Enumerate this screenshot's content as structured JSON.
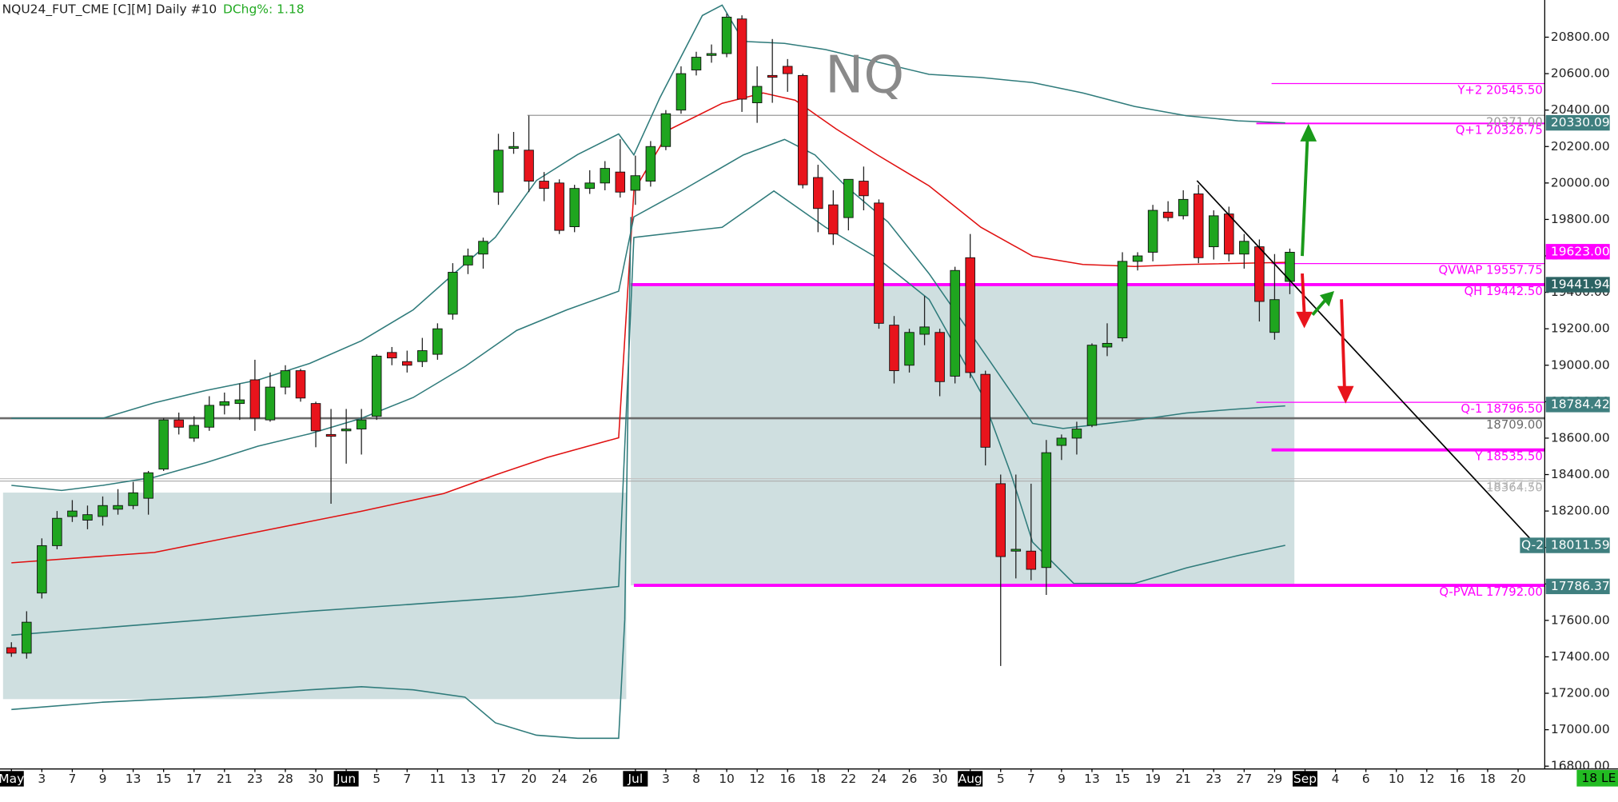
{
  "chart_data": {
    "type": "candlestick",
    "title": "NQU24_FUT_CME [C][M] Daily #10",
    "subtitle": "DChg%: 1.18",
    "watermark": "NQ",
    "corner_label": "18 LE",
    "up_color": "#1fa51f",
    "down_color": "#e8141c",
    "xlim": [
      -0.75,
      100.75
    ],
    "ylim": [
      16800,
      21000
    ],
    "open": [
      17450,
      17420,
      17750,
      18010,
      18170,
      18150,
      18170,
      18210,
      18230,
      18270,
      18430,
      18700,
      18600,
      18660,
      18780,
      18790,
      18920,
      18700,
      18880,
      18970,
      18790,
      18620,
      18640,
      18650,
      18720,
      19070,
      19020,
      19020,
      19060,
      19280,
      19550,
      19610,
      19950,
      20190,
      20180,
      20010,
      20000,
      19760,
      19970,
      20000,
      20060,
      19960,
      20010,
      20200,
      20400,
      20620,
      20700,
      20710,
      20900,
      20440,
      20590,
      20640,
      20590,
      20030,
      19880,
      19810,
      20010,
      19890,
      19220,
      19000,
      19170,
      19180,
      18940,
      19590,
      18950,
      18350,
      17980,
      17980,
      17890,
      18560,
      18600,
      18670,
      19100,
      19150,
      19570,
      19620,
      19840,
      19820,
      19940,
      19650,
      19830,
      19610,
      19650,
      19180,
      19460
    ],
    "high": [
      17480,
      17650,
      18050,
      18200,
      18260,
      18230,
      18280,
      18320,
      18360,
      18420,
      18710,
      18740,
      18720,
      18830,
      18850,
      18900,
      19030,
      18960,
      19000,
      18980,
      18800,
      18760,
      18760,
      18760,
      19060,
      19100,
      19080,
      19150,
      19230,
      19560,
      19640,
      19700,
      20270,
      20280,
      20370,
      20060,
      20020,
      19990,
      20070,
      20120,
      20240,
      20150,
      20230,
      20400,
      20640,
      20720,
      20760,
      20930,
      20920,
      20640,
      20790,
      20680,
      20600,
      20100,
      19960,
      20020,
      20090,
      19910,
      19270,
      19200,
      19380,
      19200,
      19540,
      19720,
      18970,
      18400,
      18400,
      18350,
      18590,
      18620,
      18690,
      19120,
      19230,
      19620,
      19620,
      19880,
      19900,
      19960,
      19990,
      19850,
      19870,
      19720,
      19690,
      19610,
      19640
    ],
    "low": [
      17400,
      17390,
      17720,
      17990,
      18140,
      18100,
      18120,
      18180,
      18210,
      18180,
      18420,
      18620,
      18580,
      18640,
      18730,
      18700,
      18640,
      18690,
      18840,
      18800,
      18550,
      18240,
      18460,
      18510,
      18700,
      19000,
      18960,
      18990,
      19030,
      19250,
      19500,
      19530,
      19880,
      20160,
      19950,
      19900,
      19720,
      19730,
      19940,
      19960,
      19920,
      19880,
      19980,
      20180,
      20380,
      20590,
      20660,
      20690,
      20390,
      20330,
      20440,
      20500,
      19970,
      19730,
      19660,
      19740,
      19850,
      19200,
      18900,
      18960,
      19110,
      18830,
      18900,
      18930,
      18450,
      17350,
      17830,
      17820,
      17740,
      18480,
      18510,
      18660,
      19050,
      19130,
      19520,
      19570,
      19790,
      19800,
      19560,
      19580,
      19570,
      19530,
      19240,
      19140,
      19390
    ],
    "close": [
      17420,
      17590,
      18010,
      18160,
      18200,
      18180,
      18230,
      18230,
      18300,
      18410,
      18700,
      18660,
      18670,
      18780,
      18800,
      18810,
      18710,
      18880,
      18970,
      18820,
      18640,
      18610,
      18650,
      18700,
      19050,
      19040,
      19000,
      19080,
      19200,
      19510,
      19600,
      19680,
      20180,
      20200,
      20010,
      19970,
      19740,
      19970,
      20000,
      20080,
      19950,
      20040,
      20200,
      20380,
      20600,
      20690,
      20710,
      20910,
      20460,
      20530,
      20580,
      20600,
      19990,
      19860,
      19720,
      20020,
      19930,
      19230,
      18970,
      19180,
      19210,
      18910,
      19520,
      18960,
      18550,
      17950,
      17990,
      17880,
      18520,
      18600,
      18650,
      19110,
      19120,
      19570,
      19600,
      19850,
      19810,
      19910,
      19590,
      19820,
      19610,
      19680,
      19350,
      19360,
      19620
    ],
    "xticks": [
      {
        "value": 0,
        "label": "May"
      },
      {
        "value": 2,
        "label": "3"
      },
      {
        "value": 4,
        "label": "7"
      },
      {
        "value": 6,
        "label": "9"
      },
      {
        "value": 8,
        "label": "13"
      },
      {
        "value": 10,
        "label": "15"
      },
      {
        "value": 12,
        "label": "17"
      },
      {
        "value": 14,
        "label": "21"
      },
      {
        "value": 16,
        "label": "23"
      },
      {
        "value": 18,
        "label": "28"
      },
      {
        "value": 20,
        "label": "30"
      },
      {
        "value": 22,
        "label": "Jun"
      },
      {
        "value": 24,
        "label": "5"
      },
      {
        "value": 26,
        "label": "7"
      },
      {
        "value": 28,
        "label": "11"
      },
      {
        "value": 30,
        "label": "13"
      },
      {
        "value": 32,
        "label": "17"
      },
      {
        "value": 34,
        "label": "20"
      },
      {
        "value": 36,
        "label": "24"
      },
      {
        "value": 38,
        "label": "26"
      },
      {
        "value": 41,
        "label": "Jul"
      },
      {
        "value": 43,
        "label": "3"
      },
      {
        "value": 45,
        "label": "8"
      },
      {
        "value": 47,
        "label": "10"
      },
      {
        "value": 49,
        "label": "12"
      },
      {
        "value": 51,
        "label": "16"
      },
      {
        "value": 53,
        "label": "18"
      },
      {
        "value": 55,
        "label": "22"
      },
      {
        "value": 57,
        "label": "24"
      },
      {
        "value": 59,
        "label": "26"
      },
      {
        "value": 61,
        "label": "30"
      },
      {
        "value": 63,
        "label": "Aug"
      },
      {
        "value": 65,
        "label": "5"
      },
      {
        "value": 67,
        "label": "7"
      },
      {
        "value": 69,
        "label": "9"
      },
      {
        "value": 71,
        "label": "13"
      },
      {
        "value": 73,
        "label": "15"
      },
      {
        "value": 75,
        "label": "19"
      },
      {
        "value": 77,
        "label": "21"
      },
      {
        "value": 79,
        "label": "23"
      },
      {
        "value": 81,
        "label": "27"
      },
      {
        "value": 83,
        "label": "29"
      },
      {
        "value": 85,
        "label": "Sep"
      },
      {
        "value": 87,
        "label": "4"
      },
      {
        "value": 89,
        "label": "6"
      },
      {
        "value": 91,
        "label": "10"
      },
      {
        "value": 93,
        "label": "12"
      },
      {
        "value": 95,
        "label": "16"
      },
      {
        "value": 97,
        "label": "18"
      },
      {
        "value": 99,
        "label": "20"
      }
    ],
    "yticks": [
      {
        "value": 16800,
        "label": "16800.00"
      },
      {
        "value": 17000,
        "label": "17000.00"
      },
      {
        "value": 17200,
        "label": "17200.00"
      },
      {
        "value": 17400,
        "label": "17400.00"
      },
      {
        "value": 17600,
        "label": "17600.00"
      },
      {
        "value": 17800,
        "label": "17800.00"
      },
      {
        "value": 18000,
        "label": "18000.00"
      },
      {
        "value": 18200,
        "label": "18200.00"
      },
      {
        "value": 18400,
        "label": "18400.00"
      },
      {
        "value": 18600,
        "label": "18600.00"
      },
      {
        "value": 18800,
        "label": "18800.00"
      },
      {
        "value": 19000,
        "label": "19000.00"
      },
      {
        "value": 19200,
        "label": "19200.00"
      },
      {
        "value": 19400,
        "label": "19400.00"
      },
      {
        "value": 19600,
        "label": "19600.00"
      },
      {
        "value": 19800,
        "label": "19800.00"
      },
      {
        "value": 20000,
        "label": "20000.00"
      },
      {
        "value": 20200,
        "label": "20200.00"
      },
      {
        "value": 20400,
        "label": "20400.00"
      },
      {
        "value": 20600,
        "label": "20600.00"
      },
      {
        "value": 20800,
        "label": "20800.00"
      }
    ],
    "zones": [
      {
        "color": "#cfdfe0",
        "x": [
          -0.55,
          40.4
        ],
        "values": [
          18301,
          17168
        ]
      },
      {
        "color": "#cfdfe0",
        "x": [
          40.7,
          84.3
        ],
        "values": [
          19442.5,
          17792
        ]
      }
    ],
    "lines": [
      {
        "color": "#e01010",
        "x": [
          0,
          9.4,
          16.2,
          23.0,
          28.4,
          31.8,
          35.2,
          39.9,
          40.9,
          43.3,
          46.7,
          49.4,
          51.5,
          54.2,
          56.9,
          60.3,
          63.7,
          67.1,
          70.4,
          73.8,
          77.2,
          84.0
        ],
        "values": [
          17916,
          17973,
          18086,
          18199,
          18296,
          18398,
          18494,
          18602,
          19956,
          20296,
          20437,
          20494,
          20454,
          20296,
          20154,
          19984,
          19757,
          19599,
          19553,
          19542,
          19553,
          19565
        ]
      },
      {
        "color": "#2f7b7b",
        "x": [
          0,
          6.0,
          9.4,
          12.8,
          16.2,
          19.6,
          23.0,
          26.4,
          29.1,
          31.8,
          34.5,
          37.2,
          39.9,
          40.9,
          42.6,
          45.4,
          46.7,
          48.1,
          50.8,
          53.5,
          56.9,
          60.3,
          63.7,
          67.1,
          70.4,
          73.8,
          77.2,
          80.6,
          83.7
        ],
        "values": [
          18709,
          18709,
          18794,
          18862,
          18919,
          19010,
          19134,
          19304,
          19504,
          19702,
          20014,
          20156,
          20269,
          20154,
          20466,
          20919,
          20976,
          20777,
          20766,
          20732,
          20664,
          20596,
          20579,
          20551,
          20494,
          20420,
          20369,
          20341,
          20330
        ]
      },
      {
        "color": "#2f7b7b",
        "x": [
          0,
          3.3,
          6.0,
          9.4,
          12.8,
          16.2,
          19.6,
          23.0,
          26.4,
          29.8,
          33.2,
          36.5,
          39.9,
          40.9,
          44.0,
          48.1,
          50.8,
          52.8,
          54.8,
          57.6,
          60.3,
          64.3,
          67.1,
          69.1,
          73.8,
          77.2,
          80.6,
          83.7
        ],
        "values": [
          18341,
          18313,
          18341,
          18386,
          18466,
          18556,
          18624,
          18709,
          18823,
          18993,
          19191,
          19304,
          19406,
          19814,
          19956,
          20154,
          20239,
          20154,
          19984,
          19786,
          19502,
          19021,
          18681,
          18653,
          18698,
          18738,
          18760,
          18777
        ]
      },
      {
        "color": "#2f7b7b",
        "x": [
          0,
          6.0,
          12.8,
          19.6,
          26.4,
          33.2,
          39.9,
          40.9,
          46.7,
          50.1,
          53.5,
          56.9,
          60.3,
          63.7,
          65.7,
          67.1,
          69.8,
          73.8,
          77.2,
          80.6,
          83.7
        ],
        "values": [
          17519,
          17559,
          17604,
          17650,
          17689,
          17729,
          17786,
          19701,
          19757,
          19956,
          19757,
          19588,
          19361,
          18851,
          18398,
          18029,
          17803,
          17803,
          17888,
          17956,
          18012
        ]
      },
      {
        "color": "#2f7b7b",
        "x": [
          0,
          6.0,
          12.8,
          19.6,
          23.0,
          26.4,
          29.8,
          31.8,
          34.5,
          37.2,
          39.9,
          40.3,
          40.7
        ],
        "values": [
          17111,
          17151,
          17179,
          17219,
          17236,
          17219,
          17179,
          17038,
          16970,
          16953,
          16953,
          17604,
          19814
        ]
      }
    ],
    "levels": [
      {
        "label": "20371.00",
        "value": 20371,
        "x0": 33.9,
        "color": "#999999",
        "width": 1
      },
      {
        "label": "18709.00",
        "value": 18709,
        "x0": -0.75,
        "color": "#6b6b6b",
        "width": 2
      },
      {
        "label": "18377.75",
        "value": 18377.75,
        "x0": -0.75,
        "color": "#c4c4c4",
        "width": 1
      },
      {
        "label": "18364.50",
        "value": 18364.5,
        "x0": -0.75,
        "color": "#b0b0b0",
        "width": 1
      },
      {
        "label": "Y+2 20545.50",
        "value": 20545.5,
        "x0": 82.8,
        "color": "#ff00ff",
        "width": 1
      },
      {
        "label": "Q+1 20326.75",
        "value": 20326.75,
        "x0": 81.8,
        "color": "#ff00ff",
        "width": 1.5
      },
      {
        "label": "QVWAP 19557.75",
        "value": 19557.75,
        "x0": 82.8,
        "color": "#ff00ff",
        "width": 1
      },
      {
        "label": "QH 19442.50",
        "value": 19442.5,
        "x0": 40.7,
        "color": "#ff00ff",
        "width": 3
      },
      {
        "label": "Q-1 18796.50",
        "value": 18796.5,
        "x0": 81.8,
        "color": "#ff00ff",
        "width": 1
      },
      {
        "label": "Y 18535.50",
        "value": 18535.5,
        "x0": 82.8,
        "color": "#ff00ff",
        "width": 3
      },
      {
        "label": "Q-PVAL 17792.00",
        "value": 17792,
        "x0": 40.9,
        "color": "#ff00ff",
        "width": 3
      }
    ],
    "markers": [
      {
        "value": 20330.09,
        "label": "20330.09",
        "color": "#3f7f7f"
      },
      {
        "value": 19623,
        "label": "19623.00",
        "color": "#ff00ff"
      },
      {
        "value": 19441.94,
        "label": "19441.94",
        "color": "#2c6363"
      },
      {
        "value": 18784.42,
        "label": "18784.42",
        "color": "#3f7f7f"
      },
      {
        "value": 18011.59,
        "label": "18011.59",
        "tag": "Q-2",
        "color": "#3f7f7f"
      },
      {
        "value": 17786.37,
        "label": "17786.37",
        "color": "#3f7f7f"
      }
    ]
  }
}
